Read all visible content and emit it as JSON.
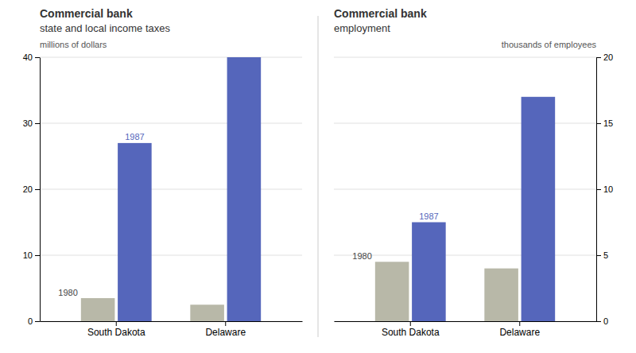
{
  "chart_data": [
    {
      "type": "bar",
      "title": "Commercial bank",
      "subtitle": "state and local income taxes",
      "y_label": "millions of dollars",
      "categories": [
        "South Dakota",
        "Delaware"
      ],
      "series": [
        {
          "name": "1980",
          "color": "#b8b8a8",
          "values": [
            3.5,
            2.5
          ]
        },
        {
          "name": "1987",
          "color": "#5566bb",
          "values": [
            27.0,
            40.0
          ]
        }
      ],
      "ylim": [
        0,
        40
      ],
      "yticks": [
        0,
        10,
        20,
        30,
        40
      ],
      "grid": true
    },
    {
      "type": "bar",
      "title": "Commercial bank",
      "subtitle": "employment",
      "y_label": "thousands of employees",
      "categories": [
        "South Dakota",
        "Delaware"
      ],
      "series": [
        {
          "name": "1980",
          "color": "#b8b8a8",
          "values": [
            4.5,
            4.0
          ]
        },
        {
          "name": "1987",
          "color": "#5566bb",
          "values": [
            7.5,
            17.0
          ]
        }
      ],
      "ylim": [
        0,
        20
      ],
      "yticks": [
        0,
        5,
        10,
        15,
        20
      ],
      "grid": true
    }
  ]
}
